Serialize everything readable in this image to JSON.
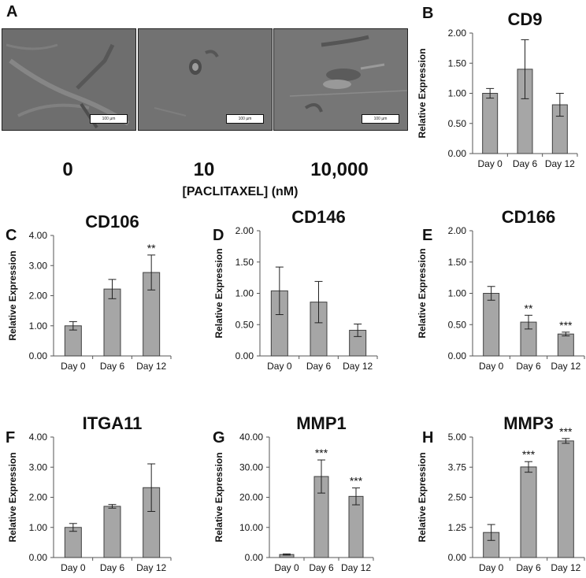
{
  "panel_letters": [
    "A",
    "B",
    "C",
    "D",
    "E",
    "F",
    "G",
    "H"
  ],
  "micrographs": {
    "doses": [
      "0",
      "10",
      "10,000"
    ],
    "x_caption": "[PACLITAXEL] (nM)",
    "scale_bar_label": "100 µm"
  },
  "chart_data": [
    {
      "type": "bar",
      "title": "CD9",
      "ylabel": "Relative Expression",
      "categories": [
        "Day 0",
        "Day 6",
        "Day 12"
      ],
      "values": [
        1.0,
        1.4,
        0.81
      ],
      "errors": [
        0.08,
        0.49,
        0.19
      ],
      "ylim": [
        0,
        2
      ],
      "ytick_labels": [
        "0.00",
        "0.50",
        "1.00",
        "1.50",
        "2.00"
      ],
      "significance": [
        "",
        "",
        ""
      ]
    },
    {
      "type": "bar",
      "title": "CD106",
      "ylabel": "Relative Expression",
      "categories": [
        "Day 0",
        "Day 6",
        "Day 12"
      ],
      "values": [
        1.0,
        2.22,
        2.77
      ],
      "errors": [
        0.14,
        0.32,
        0.58
      ],
      "ylim": [
        0,
        4
      ],
      "ytick_labels": [
        "0.00",
        "1.00",
        "2.00",
        "3.00",
        "4.00"
      ],
      "significance": [
        "",
        "",
        "**"
      ]
    },
    {
      "type": "bar",
      "title": "CD146",
      "ylabel": "Relative Expression",
      "categories": [
        "Day 0",
        "Day 6",
        "Day 12"
      ],
      "values": [
        1.04,
        0.86,
        0.41
      ],
      "errors": [
        0.38,
        0.33,
        0.1
      ],
      "ylim": [
        0,
        2
      ],
      "ytick_labels": [
        "0.00",
        "0.50",
        "1.00",
        "1.50",
        "2.00"
      ],
      "significance": [
        "",
        "",
        ""
      ]
    },
    {
      "type": "bar",
      "title": "CD166",
      "ylabel": "Relative Expression",
      "categories": [
        "Day 0",
        "Day 6",
        "Day 12"
      ],
      "values": [
        1.0,
        0.54,
        0.35
      ],
      "errors": [
        0.11,
        0.11,
        0.03
      ],
      "ylim": [
        0,
        2
      ],
      "ytick_labels": [
        "0.00",
        "0.50",
        "1.00",
        "1.50",
        "2.00"
      ],
      "significance": [
        "",
        "**",
        "***"
      ]
    },
    {
      "type": "bar",
      "title": "ITGA11",
      "ylabel": "Relative Expression",
      "categories": [
        "Day 0",
        "Day 6",
        "Day 12"
      ],
      "values": [
        1.0,
        1.7,
        2.32
      ],
      "errors": [
        0.13,
        0.06,
        0.79
      ],
      "ylim": [
        0,
        4
      ],
      "ytick_labels": [
        "0.00",
        "1.00",
        "2.00",
        "3.00",
        "4.00"
      ],
      "significance": [
        "",
        "",
        ""
      ]
    },
    {
      "type": "bar",
      "title": "MMP1",
      "ylabel": "Relative Expression",
      "categories": [
        "Day 0",
        "Day 6",
        "Day 12"
      ],
      "values": [
        1.0,
        26.9,
        20.3
      ],
      "errors": [
        0.2,
        5.5,
        2.8
      ],
      "ylim": [
        0,
        40
      ],
      "ytick_labels": [
        "0.00",
        "10.00",
        "20.00",
        "30.00",
        "40.00"
      ],
      "significance": [
        "",
        "***",
        "***"
      ]
    },
    {
      "type": "bar",
      "title": "MMP3",
      "ylabel": "Relative Expression",
      "categories": [
        "Day 0",
        "Day 6",
        "Day 12"
      ],
      "values": [
        1.04,
        3.76,
        4.84
      ],
      "errors": [
        0.33,
        0.22,
        0.1
      ],
      "ylim": [
        0,
        5
      ],
      "ytick_labels": [
        "0.00",
        "1.25",
        "2.50",
        "3.75",
        "5.00"
      ],
      "significance": [
        "",
        "***",
        "***"
      ]
    }
  ],
  "colors": {
    "bar_fill": "#a6a6a6",
    "bar_edge": "#404040",
    "axis": "#555555",
    "text": "#111111",
    "micro_base": "#6b6b6b"
  }
}
